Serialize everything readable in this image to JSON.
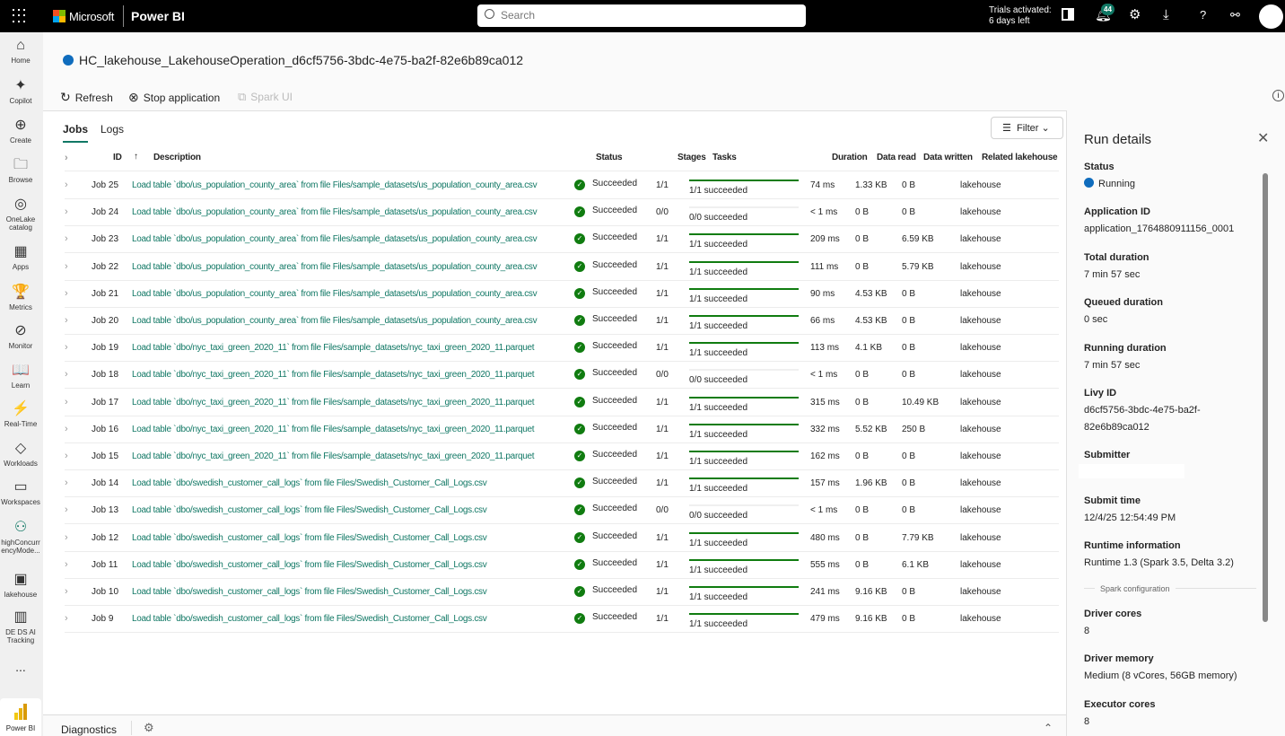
{
  "topbar": {
    "brand": "Microsoft",
    "app": "Power BI",
    "search_placeholder": "Search",
    "trial_line1": "Trials activated:",
    "trial_line2": "6 days left",
    "notification_count": "44"
  },
  "nav": [
    {
      "label": "Home",
      "icon": "⌂"
    },
    {
      "label": "Copilot",
      "icon": "✦"
    },
    {
      "label": "Create",
      "icon": "⊕"
    },
    {
      "label": "Browse",
      "icon": "🗀"
    },
    {
      "label": "OneLake catalog",
      "icon": "◎"
    },
    {
      "label": "Apps",
      "icon": "▦"
    },
    {
      "label": "Metrics",
      "icon": "🏆"
    },
    {
      "label": "Monitor",
      "icon": "⊘"
    },
    {
      "label": "Learn",
      "icon": "📖"
    },
    {
      "label": "Real-Time",
      "icon": "⚡"
    },
    {
      "label": "Workloads",
      "icon": "◇"
    },
    {
      "label": "Workspaces",
      "icon": "▭"
    },
    {
      "label": "highConcurrencyMode...",
      "icon": "⚇"
    },
    {
      "label": "lakehouse",
      "icon": "▣"
    },
    {
      "label": "DE DS AI Tracking",
      "icon": "▥"
    },
    {
      "label": "...",
      "icon": ""
    }
  ],
  "nav_bottom": "Power BI",
  "page": {
    "title": "HC_lakehouse_LakehouseOperation_d6cf5756-3bdc-4e75-ba2f-82e6b89ca012",
    "refresh": "Refresh",
    "stop": "Stop application",
    "spark_ui": "Spark UI"
  },
  "tabs": [
    "Jobs",
    "Logs"
  ],
  "filter": "Filter",
  "columns": {
    "id": "ID",
    "desc": "Description",
    "status": "Status",
    "stages": "Stages",
    "tasks": "Tasks",
    "duration": "Duration",
    "read": "Data read",
    "written": "Data written",
    "lakehouse": "Related lakehouse"
  },
  "jobs": [
    {
      "id": "Job 25",
      "desc": "Load table `dbo/us_population_county_area` from file Files/sample_datasets/us_population_county_area.csv",
      "status": "Succeeded",
      "stages": "1/1",
      "tasks": "1/1 succeeded",
      "progress": 1,
      "duration": "74 ms",
      "read": "1.33 KB",
      "written": "0 B",
      "lakehouse": "lakehouse"
    },
    {
      "id": "Job 24",
      "desc": "Load table `dbo/us_population_county_area` from file Files/sample_datasets/us_population_county_area.csv",
      "status": "Succeeded",
      "stages": "0/0",
      "tasks": "0/0 succeeded",
      "progress": 0,
      "duration": "< 1 ms",
      "read": "0 B",
      "written": "0 B",
      "lakehouse": "lakehouse"
    },
    {
      "id": "Job 23",
      "desc": "Load table `dbo/us_population_county_area` from file Files/sample_datasets/us_population_county_area.csv",
      "status": "Succeeded",
      "stages": "1/1",
      "tasks": "1/1 succeeded",
      "progress": 1,
      "duration": "209 ms",
      "read": "0 B",
      "written": "6.59 KB",
      "lakehouse": "lakehouse"
    },
    {
      "id": "Job 22",
      "desc": "Load table `dbo/us_population_county_area` from file Files/sample_datasets/us_population_county_area.csv",
      "status": "Succeeded",
      "stages": "1/1",
      "tasks": "1/1 succeeded",
      "progress": 1,
      "duration": "111 ms",
      "read": "0 B",
      "written": "5.79 KB",
      "lakehouse": "lakehouse"
    },
    {
      "id": "Job 21",
      "desc": "Load table `dbo/us_population_county_area` from file Files/sample_datasets/us_population_county_area.csv",
      "status": "Succeeded",
      "stages": "1/1",
      "tasks": "1/1 succeeded",
      "progress": 1,
      "duration": "90 ms",
      "read": "4.53 KB",
      "written": "0 B",
      "lakehouse": "lakehouse"
    },
    {
      "id": "Job 20",
      "desc": "Load table `dbo/us_population_county_area` from file Files/sample_datasets/us_population_county_area.csv",
      "status": "Succeeded",
      "stages": "1/1",
      "tasks": "1/1 succeeded",
      "progress": 1,
      "duration": "66 ms",
      "read": "4.53 KB",
      "written": "0 B",
      "lakehouse": "lakehouse"
    },
    {
      "id": "Job 19",
      "desc": "Load table `dbo/nyc_taxi_green_2020_11` from file Files/sample_datasets/nyc_taxi_green_2020_11.parquet",
      "status": "Succeeded",
      "stages": "1/1",
      "tasks": "1/1 succeeded",
      "progress": 1,
      "duration": "113 ms",
      "read": "4.1 KB",
      "written": "0 B",
      "lakehouse": "lakehouse"
    },
    {
      "id": "Job 18",
      "desc": "Load table `dbo/nyc_taxi_green_2020_11` from file Files/sample_datasets/nyc_taxi_green_2020_11.parquet",
      "status": "Succeeded",
      "stages": "0/0",
      "tasks": "0/0 succeeded",
      "progress": 0,
      "duration": "< 1 ms",
      "read": "0 B",
      "written": "0 B",
      "lakehouse": "lakehouse"
    },
    {
      "id": "Job 17",
      "desc": "Load table `dbo/nyc_taxi_green_2020_11` from file Files/sample_datasets/nyc_taxi_green_2020_11.parquet",
      "status": "Succeeded",
      "stages": "1/1",
      "tasks": "1/1 succeeded",
      "progress": 1,
      "duration": "315 ms",
      "read": "0 B",
      "written": "10.49 KB",
      "lakehouse": "lakehouse"
    },
    {
      "id": "Job 16",
      "desc": "Load table `dbo/nyc_taxi_green_2020_11` from file Files/sample_datasets/nyc_taxi_green_2020_11.parquet",
      "status": "Succeeded",
      "stages": "1/1",
      "tasks": "1/1 succeeded",
      "progress": 1,
      "duration": "332 ms",
      "read": "5.52 KB",
      "written": "250 B",
      "lakehouse": "lakehouse"
    },
    {
      "id": "Job 15",
      "desc": "Load table `dbo/nyc_taxi_green_2020_11` from file Files/sample_datasets/nyc_taxi_green_2020_11.parquet",
      "status": "Succeeded",
      "stages": "1/1",
      "tasks": "1/1 succeeded",
      "progress": 1,
      "duration": "162 ms",
      "read": "0 B",
      "written": "0 B",
      "lakehouse": "lakehouse"
    },
    {
      "id": "Job 14",
      "desc": "Load table `dbo/swedish_customer_call_logs` from file Files/Swedish_Customer_Call_Logs.csv",
      "status": "Succeeded",
      "stages": "1/1",
      "tasks": "1/1 succeeded",
      "progress": 1,
      "duration": "157 ms",
      "read": "1.96 KB",
      "written": "0 B",
      "lakehouse": "lakehouse"
    },
    {
      "id": "Job 13",
      "desc": "Load table `dbo/swedish_customer_call_logs` from file Files/Swedish_Customer_Call_Logs.csv",
      "status": "Succeeded",
      "stages": "0/0",
      "tasks": "0/0 succeeded",
      "progress": 0,
      "duration": "< 1 ms",
      "read": "0 B",
      "written": "0 B",
      "lakehouse": "lakehouse"
    },
    {
      "id": "Job 12",
      "desc": "Load table `dbo/swedish_customer_call_logs` from file Files/Swedish_Customer_Call_Logs.csv",
      "status": "Succeeded",
      "stages": "1/1",
      "tasks": "1/1 succeeded",
      "progress": 1,
      "duration": "480 ms",
      "read": "0 B",
      "written": "7.79 KB",
      "lakehouse": "lakehouse"
    },
    {
      "id": "Job 11",
      "desc": "Load table `dbo/swedish_customer_call_logs` from file Files/Swedish_Customer_Call_Logs.csv",
      "status": "Succeeded",
      "stages": "1/1",
      "tasks": "1/1 succeeded",
      "progress": 1,
      "duration": "555 ms",
      "read": "0 B",
      "written": "6.1 KB",
      "lakehouse": "lakehouse"
    },
    {
      "id": "Job 10",
      "desc": "Load table `dbo/swedish_customer_call_logs` from file Files/Swedish_Customer_Call_Logs.csv",
      "status": "Succeeded",
      "stages": "1/1",
      "tasks": "1/1 succeeded",
      "progress": 1,
      "duration": "241 ms",
      "read": "9.16 KB",
      "written": "0 B",
      "lakehouse": "lakehouse"
    },
    {
      "id": "Job 9",
      "desc": "Load table `dbo/swedish_customer_call_logs` from file Files/Swedish_Customer_Call_Logs.csv",
      "status": "Succeeded",
      "stages": "1/1",
      "tasks": "1/1 succeeded",
      "progress": 1,
      "duration": "479 ms",
      "read": "9.16 KB",
      "written": "0 B",
      "lakehouse": "lakehouse"
    }
  ],
  "diagnostics": "Diagnostics",
  "details": {
    "title": "Run details",
    "status_label": "Status",
    "status": "Running",
    "fields": [
      {
        "label": "Application ID",
        "value": "application_1764880911156_0001"
      },
      {
        "label": "Total duration",
        "value": "7 min 57 sec"
      },
      {
        "label": "Queued duration",
        "value": "0 sec"
      },
      {
        "label": "Running duration",
        "value": "7 min 57 sec"
      },
      {
        "label": "Livy ID",
        "value": "d6cf5756-3bdc-4e75-ba2f-82e6b89ca012"
      },
      {
        "label": "Submitter",
        "value": ""
      },
      {
        "label": "Submit time",
        "value": "12/4/25 12:54:49 PM"
      },
      {
        "label": "Runtime information",
        "value": "Runtime 1.3 (Spark 3.5, Delta 3.2)"
      }
    ],
    "section": "Spark configuration",
    "spark_fields": [
      {
        "label": "Driver cores",
        "value": "8"
      },
      {
        "label": "Driver memory",
        "value": "Medium (8 vCores, 56GB memory)"
      },
      {
        "label": "Executor cores",
        "value": "8"
      }
    ]
  },
  "colors": {
    "accent": "#117865",
    "success": "#107c10",
    "running": "#0f6cbd"
  }
}
